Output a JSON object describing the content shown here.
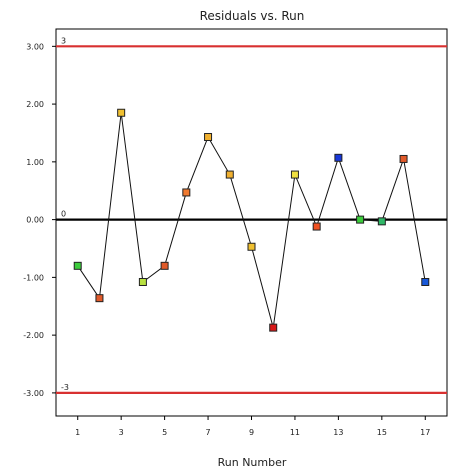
{
  "chart_data": {
    "type": "scatter",
    "title": "Residuals vs. Run",
    "xlabel": "Run Number",
    "ylabel": "",
    "xlim": [
      0,
      18
    ],
    "ylim": [
      -3.4,
      3.3
    ],
    "x_ticks": [
      1,
      3,
      5,
      7,
      9,
      11,
      13,
      15,
      17
    ],
    "y_ticks": [
      -3.0,
      -2.0,
      -1.0,
      0.0,
      1.0,
      2.0,
      3.0
    ],
    "y_tick_labels": [
      "-3.00",
      "-2.00",
      "-1.00",
      "0.00",
      "1.00",
      "2.00",
      "3.00"
    ],
    "grid": false,
    "reference_lines": [
      {
        "value": 3,
        "label": "3",
        "color": "#d83030"
      },
      {
        "value": 0,
        "label": "0",
        "color": "#000000"
      },
      {
        "value": -3,
        "label": "-3",
        "color": "#d83030"
      }
    ],
    "series": [
      {
        "x": [
          1,
          2,
          3,
          4,
          5,
          6,
          7,
          8,
          9,
          10,
          11,
          12,
          13,
          14,
          15,
          16,
          17
        ],
        "y": [
          -0.8,
          -1.36,
          1.85,
          -1.08,
          -0.8,
          0.47,
          1.43,
          0.78,
          -0.47,
          -1.87,
          0.78,
          -0.12,
          1.07,
          0.0,
          -0.03,
          1.05,
          -1.08
        ],
        "colors": [
          "#3ccc3c",
          "#e05a2a",
          "#f0c030",
          "#b8e040",
          "#e05a2a",
          "#f07a30",
          "#f0b030",
          "#f0b030",
          "#f0c030",
          "#d81818",
          "#f0e040",
          "#f05020",
          "#1838d8",
          "#3ccc3c",
          "#30b868",
          "#e05a2a",
          "#1858d8"
        ]
      }
    ]
  }
}
